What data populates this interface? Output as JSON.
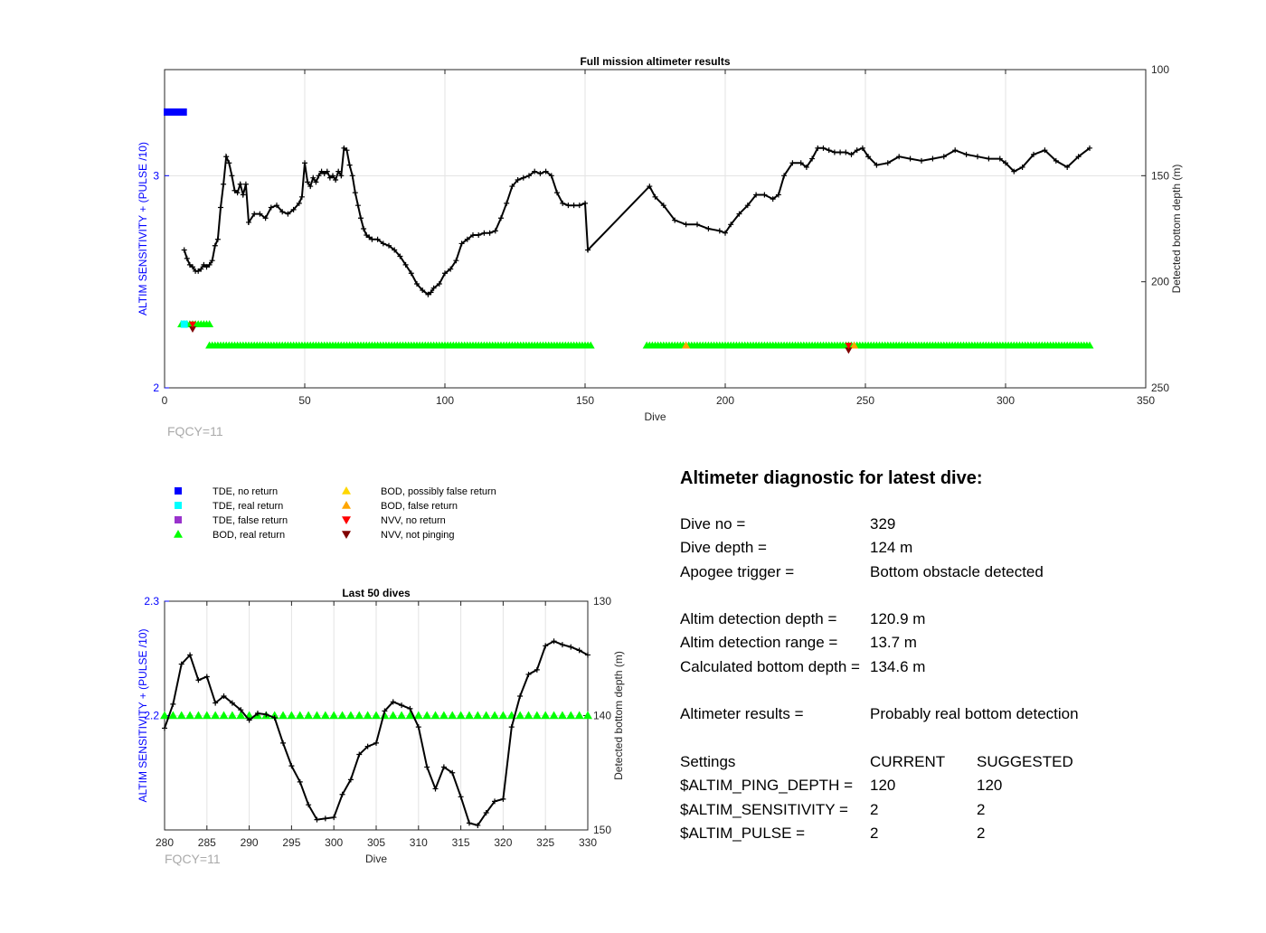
{
  "chart_data": [
    {
      "type": "line",
      "title": "Full mission altimeter results",
      "xlabel": "Dive",
      "ylabel_left": "ALTIM SENSITIVITY + (PULSE /10)",
      "ylabel_right": "Detected bottom depth (m)",
      "xlim": [
        0,
        350
      ],
      "ylim_left": [
        2,
        3.5
      ],
      "ylim_right_reversed": [
        100,
        250
      ],
      "xticks": [
        0,
        50,
        100,
        150,
        200,
        250,
        300,
        350
      ],
      "yticks_left": [
        2,
        3
      ],
      "yticks_right": [
        100,
        150,
        200,
        250
      ],
      "grid": true,
      "footnote": "FQCY=11",
      "series": [
        {
          "name": "Detected bottom depth",
          "axis": "right",
          "color": "#000000",
          "x": [
            7,
            8,
            9,
            10,
            11,
            12,
            13,
            14,
            15,
            16,
            17,
            18,
            19,
            20,
            21,
            22,
            23,
            24,
            25,
            26,
            27,
            28,
            29,
            30,
            32,
            34,
            36,
            38,
            40,
            42,
            44,
            46,
            48,
            49,
            50,
            51,
            52,
            53,
            54,
            55,
            56,
            57,
            58,
            59,
            60,
            61,
            62,
            63,
            64,
            65,
            66,
            67,
            68,
            69,
            70,
            71,
            72,
            73,
            74,
            76,
            78,
            80,
            82,
            84,
            86,
            88,
            90,
            92,
            94,
            95,
            96,
            98,
            100,
            102,
            104,
            106,
            108,
            110,
            112,
            114,
            116,
            118,
            120,
            122,
            124,
            126,
            128,
            130,
            132,
            134,
            136,
            138,
            140,
            142,
            144,
            146,
            148,
            150,
            151,
            173,
            175,
            178,
            182,
            186,
            190,
            194,
            198,
            200,
            202,
            205,
            208,
            211,
            214,
            217,
            219,
            221,
            224,
            227,
            229,
            231,
            233,
            235,
            237,
            239,
            241,
            243,
            245,
            247,
            249,
            251,
            254,
            258,
            262,
            266,
            270,
            274,
            278,
            282,
            286,
            290,
            294,
            298,
            300,
            303,
            306,
            310,
            314,
            318,
            322,
            326,
            330
          ],
          "y": [
            185,
            189,
            192,
            193,
            195,
            195,
            194,
            192,
            193,
            192,
            190,
            183,
            180,
            165,
            154,
            141,
            144,
            150,
            157,
            158,
            154,
            159,
            154,
            172,
            168,
            168,
            170,
            165,
            164,
            167,
            168,
            166,
            163,
            160,
            144,
            153,
            155,
            151,
            153,
            150,
            148,
            149,
            148,
            151,
            150,
            152,
            148,
            150,
            137,
            138,
            145,
            150,
            158,
            164,
            170,
            175,
            178,
            179,
            180,
            180,
            182,
            183,
            185,
            188,
            192,
            196,
            201,
            204,
            206,
            205,
            203,
            201,
            196,
            194,
            190,
            182,
            180,
            178,
            178,
            177,
            177,
            176,
            170,
            163,
            155,
            152,
            151,
            150,
            148,
            149,
            148,
            150,
            158,
            163,
            164,
            164,
            164,
            163,
            185,
            155,
            160,
            164,
            171,
            173,
            173,
            175,
            176,
            177,
            173,
            168,
            164,
            159,
            159,
            161,
            159,
            150,
            144,
            144,
            146,
            142,
            137,
            137,
            138,
            139,
            139,
            139,
            140,
            138,
            137,
            141,
            145,
            144,
            141,
            142,
            143,
            142,
            141,
            138,
            140,
            141,
            142,
            142,
            144,
            148,
            146,
            140,
            138,
            143,
            146,
            141,
            137
          ]
        },
        {
          "name": "BOD, real return",
          "axis": "left",
          "color": "#00ff00",
          "marker": "triangle-up",
          "segments": [
            {
              "x_start": 6,
              "x_end": 16,
              "y": 2.3
            },
            {
              "x_start": 16,
              "x_end": 148,
              "y": 2.2
            },
            {
              "x_start": 149,
              "x_end": 152,
              "y": 2.2
            },
            {
              "x_start": 172,
              "x_end": 330,
              "y": 2.2
            }
          ]
        },
        {
          "name": "TDE, no return",
          "axis": "left",
          "color": "#0000ff",
          "marker": "square",
          "x_start": 0,
          "x_end": 7,
          "y": 3.3
        },
        {
          "name": "TDE, real return",
          "axis": "left",
          "color": "#00ffff",
          "marker": "square",
          "x": [
            7
          ],
          "y": [
            2.3
          ]
        },
        {
          "name": "NVV, no return",
          "axis": "left",
          "color": "#ff0000",
          "marker": "triangle-down",
          "x": [
            10,
            244
          ],
          "y": [
            2.3,
            2.2
          ]
        },
        {
          "name": "NVV, not pinging",
          "axis": "left",
          "color": "#800000",
          "marker": "triangle-down",
          "x": [
            10,
            244
          ],
          "y": [
            2.29,
            2.19
          ]
        },
        {
          "name": "BOD, false return",
          "axis": "left",
          "color": "#ffa500",
          "marker": "triangle-up",
          "x": [
            186,
            246
          ],
          "y": [
            2.2,
            2.2
          ]
        }
      ]
    },
    {
      "type": "line",
      "title": "Last 50 dives",
      "xlabel": "Dive",
      "ylabel_left": "ALTIM SENSITIVITY + (PULSE /10)",
      "ylabel_right": "Detected bottom depth (m)",
      "xlim": [
        280,
        330
      ],
      "ylim_left": [
        2.1,
        2.3
      ],
      "ylim_right_reversed": [
        130,
        150
      ],
      "xticks": [
        280,
        285,
        290,
        295,
        300,
        305,
        310,
        315,
        320,
        325,
        330
      ],
      "yticks_left": [
        2.2,
        2.3
      ],
      "yticks_right": [
        130,
        140,
        150
      ],
      "grid": true,
      "footnote": "FQCY=11",
      "series": [
        {
          "name": "Detected bottom depth",
          "axis": "right",
          "color": "#000000",
          "x": [
            280,
            281,
            282,
            283,
            284,
            285,
            286,
            287,
            288,
            289,
            290,
            291,
            292,
            293,
            294,
            295,
            296,
            297,
            298,
            299,
            300,
            301,
            302,
            303,
            304,
            305,
            306,
            307,
            308,
            309,
            310,
            311,
            312,
            313,
            314,
            315,
            316,
            317,
            318,
            319,
            320,
            321,
            322,
            323,
            324,
            325,
            326,
            327,
            328,
            329,
            330
          ],
          "y": [
            141.1,
            139.0,
            135.5,
            134.7,
            136.9,
            136.6,
            138.9,
            138.3,
            138.9,
            139.5,
            140.4,
            139.8,
            139.9,
            140.2,
            142.4,
            144.4,
            145.8,
            147.8,
            149.1,
            149.0,
            148.9,
            146.9,
            145.6,
            143.4,
            142.7,
            142.4,
            139.6,
            138.8,
            139.1,
            139.4,
            141.0,
            144.5,
            146.4,
            144.5,
            145.0,
            147.1,
            149.4,
            149.6,
            148.5,
            147.5,
            147.3,
            141.0,
            138.3,
            136.4,
            136.0,
            133.9,
            133.5,
            133.8,
            134.0,
            134.3,
            134.7
          ]
        },
        {
          "name": "BOD, real return",
          "axis": "left",
          "color": "#00ff00",
          "marker": "triangle-up",
          "x": [
            280,
            281,
            282,
            283,
            284,
            285,
            286,
            287,
            288,
            289,
            290,
            291,
            292,
            293,
            294,
            295,
            296,
            297,
            298,
            299,
            300,
            301,
            302,
            303,
            304,
            305,
            306,
            307,
            308,
            309,
            310,
            311,
            312,
            313,
            314,
            315,
            316,
            317,
            318,
            319,
            320,
            321,
            322,
            323,
            324,
            325,
            326,
            327,
            328,
            329,
            330
          ],
          "y_constant": 2.2
        }
      ]
    }
  ],
  "legend": {
    "items": [
      {
        "label": "TDE, no return",
        "color": "#0000ff",
        "marker": "square",
        "column": 0
      },
      {
        "label": "TDE, real return",
        "color": "#00ffff",
        "marker": "square",
        "column": 0
      },
      {
        "label": "TDE, false return",
        "color": "#9932cc",
        "marker": "square",
        "column": 0
      },
      {
        "label": "BOD, real return",
        "color": "#00ff00",
        "marker": "triangle-up",
        "column": 0
      },
      {
        "label": "BOD, possibly false return",
        "color": "#ffd700",
        "marker": "triangle-up",
        "column": 1
      },
      {
        "label": "BOD, false return",
        "color": "#ffa500",
        "marker": "triangle-up",
        "column": 1
      },
      {
        "label": "NVV, no return",
        "color": "#ff0000",
        "marker": "triangle-down",
        "column": 1
      },
      {
        "label": "NVV, not pinging",
        "color": "#800000",
        "marker": "triangle-down",
        "column": 1
      }
    ]
  },
  "diagnostic": {
    "title": "Altimeter diagnostic for latest dive:",
    "dive_no_label": "Dive no =",
    "dive_no_value": "329",
    "dive_depth_label": "Dive depth =",
    "dive_depth_value": "124 m",
    "apogee_label": "Apogee trigger =",
    "apogee_value": "Bottom obstacle detected",
    "altim_depth_label": "Altim detection depth =",
    "altim_depth_value": "120.9 m",
    "altim_range_label": "Altim detection range =",
    "altim_range_value": "13.7 m",
    "calc_depth_label": "Calculated bottom depth =",
    "calc_depth_value": "134.6 m",
    "results_label": "Altimeter results =",
    "results_value": "Probably real bottom detection",
    "settings_label": "Settings",
    "current_label": "CURRENT",
    "suggested_label": "SUGGESTED",
    "ping_depth_label": "$ALTIM_PING_DEPTH =",
    "ping_depth_current": "120",
    "ping_depth_suggested": "120",
    "sensitivity_label": "$ALTIM_SENSITIVITY =",
    "sensitivity_current": "2",
    "sensitivity_suggested": "2",
    "pulse_label": "$ALTIM_PULSE =",
    "pulse_current": "2",
    "pulse_suggested": "2"
  }
}
